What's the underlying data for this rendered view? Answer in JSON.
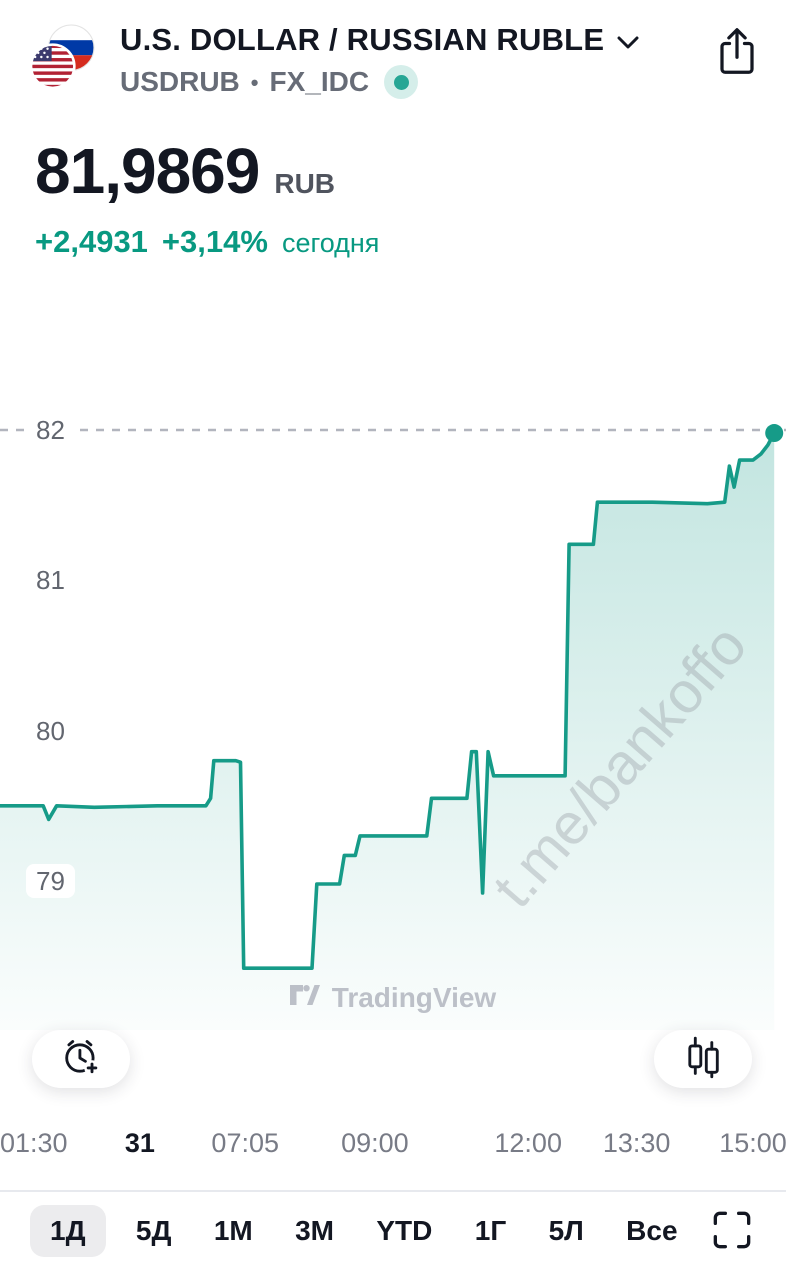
{
  "colors": {
    "accent_teal": "#089981",
    "line": "#169b88",
    "text_dark": "#131722",
    "text_gray": "#787b86",
    "price_line_dash": "#b2b5be",
    "selected_tab_bg": "#ececee",
    "status_dot": "#27a695"
  },
  "header": {
    "title": "U.S. DOLLAR / RUSSIAN RUBLE",
    "symbol": "USDRUB",
    "separator": "•",
    "exchange": "FX_IDC",
    "market_status": "open"
  },
  "quote": {
    "price": "81,9869",
    "currency": "RUB",
    "change_abs": "+2,4931",
    "change_pct": "+3,14%",
    "period_label": "сегодня"
  },
  "chart_data": {
    "type": "area",
    "title": "USDRUB intraday, 1Д range",
    "ylim": [
      78.3,
      82.2
    ],
    "grid": false,
    "current_price_level": 82,
    "last_value": 81.9869,
    "y_axis_labels": [
      {
        "text": "82",
        "value": 82
      },
      {
        "text": "81",
        "value": 81
      },
      {
        "text": "80",
        "value": 80
      },
      {
        "text": "79",
        "value": 79
      }
    ],
    "x_axis_labels": [
      {
        "text": "01:30",
        "x": 0.043,
        "emphasis": false
      },
      {
        "text": "31",
        "x": 0.178,
        "emphasis": true
      },
      {
        "text": "07:05",
        "x": 0.312,
        "emphasis": false
      },
      {
        "text": "09:00",
        "x": 0.477,
        "emphasis": false
      },
      {
        "text": "12:00",
        "x": 0.672,
        "emphasis": false
      },
      {
        "text": "13:30",
        "x": 0.81,
        "emphasis": false
      },
      {
        "text": "15:00",
        "x": 0.958,
        "emphasis": false
      }
    ],
    "points": [
      [
        0.0,
        79.5
      ],
      [
        0.03,
        79.5
      ],
      [
        0.055,
        79.5
      ],
      [
        0.062,
        79.41
      ],
      [
        0.072,
        79.5
      ],
      [
        0.12,
        79.49
      ],
      [
        0.2,
        79.5
      ],
      [
        0.262,
        79.5
      ],
      [
        0.268,
        79.55
      ],
      [
        0.272,
        79.8
      ],
      [
        0.3,
        79.8
      ],
      [
        0.306,
        79.79
      ],
      [
        0.31,
        78.42
      ],
      [
        0.397,
        78.42
      ],
      [
        0.403,
        78.98
      ],
      [
        0.432,
        78.98
      ],
      [
        0.438,
        79.17
      ],
      [
        0.452,
        79.17
      ],
      [
        0.458,
        79.3
      ],
      [
        0.543,
        79.3
      ],
      [
        0.549,
        79.55
      ],
      [
        0.594,
        79.55
      ],
      [
        0.6,
        79.86
      ],
      [
        0.606,
        79.86
      ],
      [
        0.614,
        78.92
      ],
      [
        0.621,
        79.86
      ],
      [
        0.628,
        79.7
      ],
      [
        0.7,
        79.7
      ],
      [
        0.719,
        79.7
      ],
      [
        0.724,
        81.24
      ],
      [
        0.755,
        81.24
      ],
      [
        0.76,
        81.52
      ],
      [
        0.83,
        81.52
      ],
      [
        0.9,
        81.51
      ],
      [
        0.922,
        81.52
      ],
      [
        0.928,
        81.76
      ],
      [
        0.934,
        81.62
      ],
      [
        0.941,
        81.8
      ],
      [
        0.958,
        81.8
      ],
      [
        0.968,
        81.84
      ],
      [
        0.977,
        81.9
      ],
      [
        0.985,
        81.98
      ]
    ]
  },
  "watermarks": {
    "diagonal": "t.me/bankoffo",
    "brand": "TradingView"
  },
  "tabs": {
    "items": [
      "1Д",
      "5Д",
      "1М",
      "3М",
      "YTD",
      "1Г",
      "5Л",
      "Все"
    ],
    "selected_index": 0
  },
  "icons": {
    "flag": "usd-rub-flags-icon",
    "dropdown": "chevron-down-icon",
    "share": "ios-share-icon",
    "alert": "add-alert-icon",
    "chart_style": "candlestick-icon",
    "fullscreen": "fullscreen-icon"
  }
}
